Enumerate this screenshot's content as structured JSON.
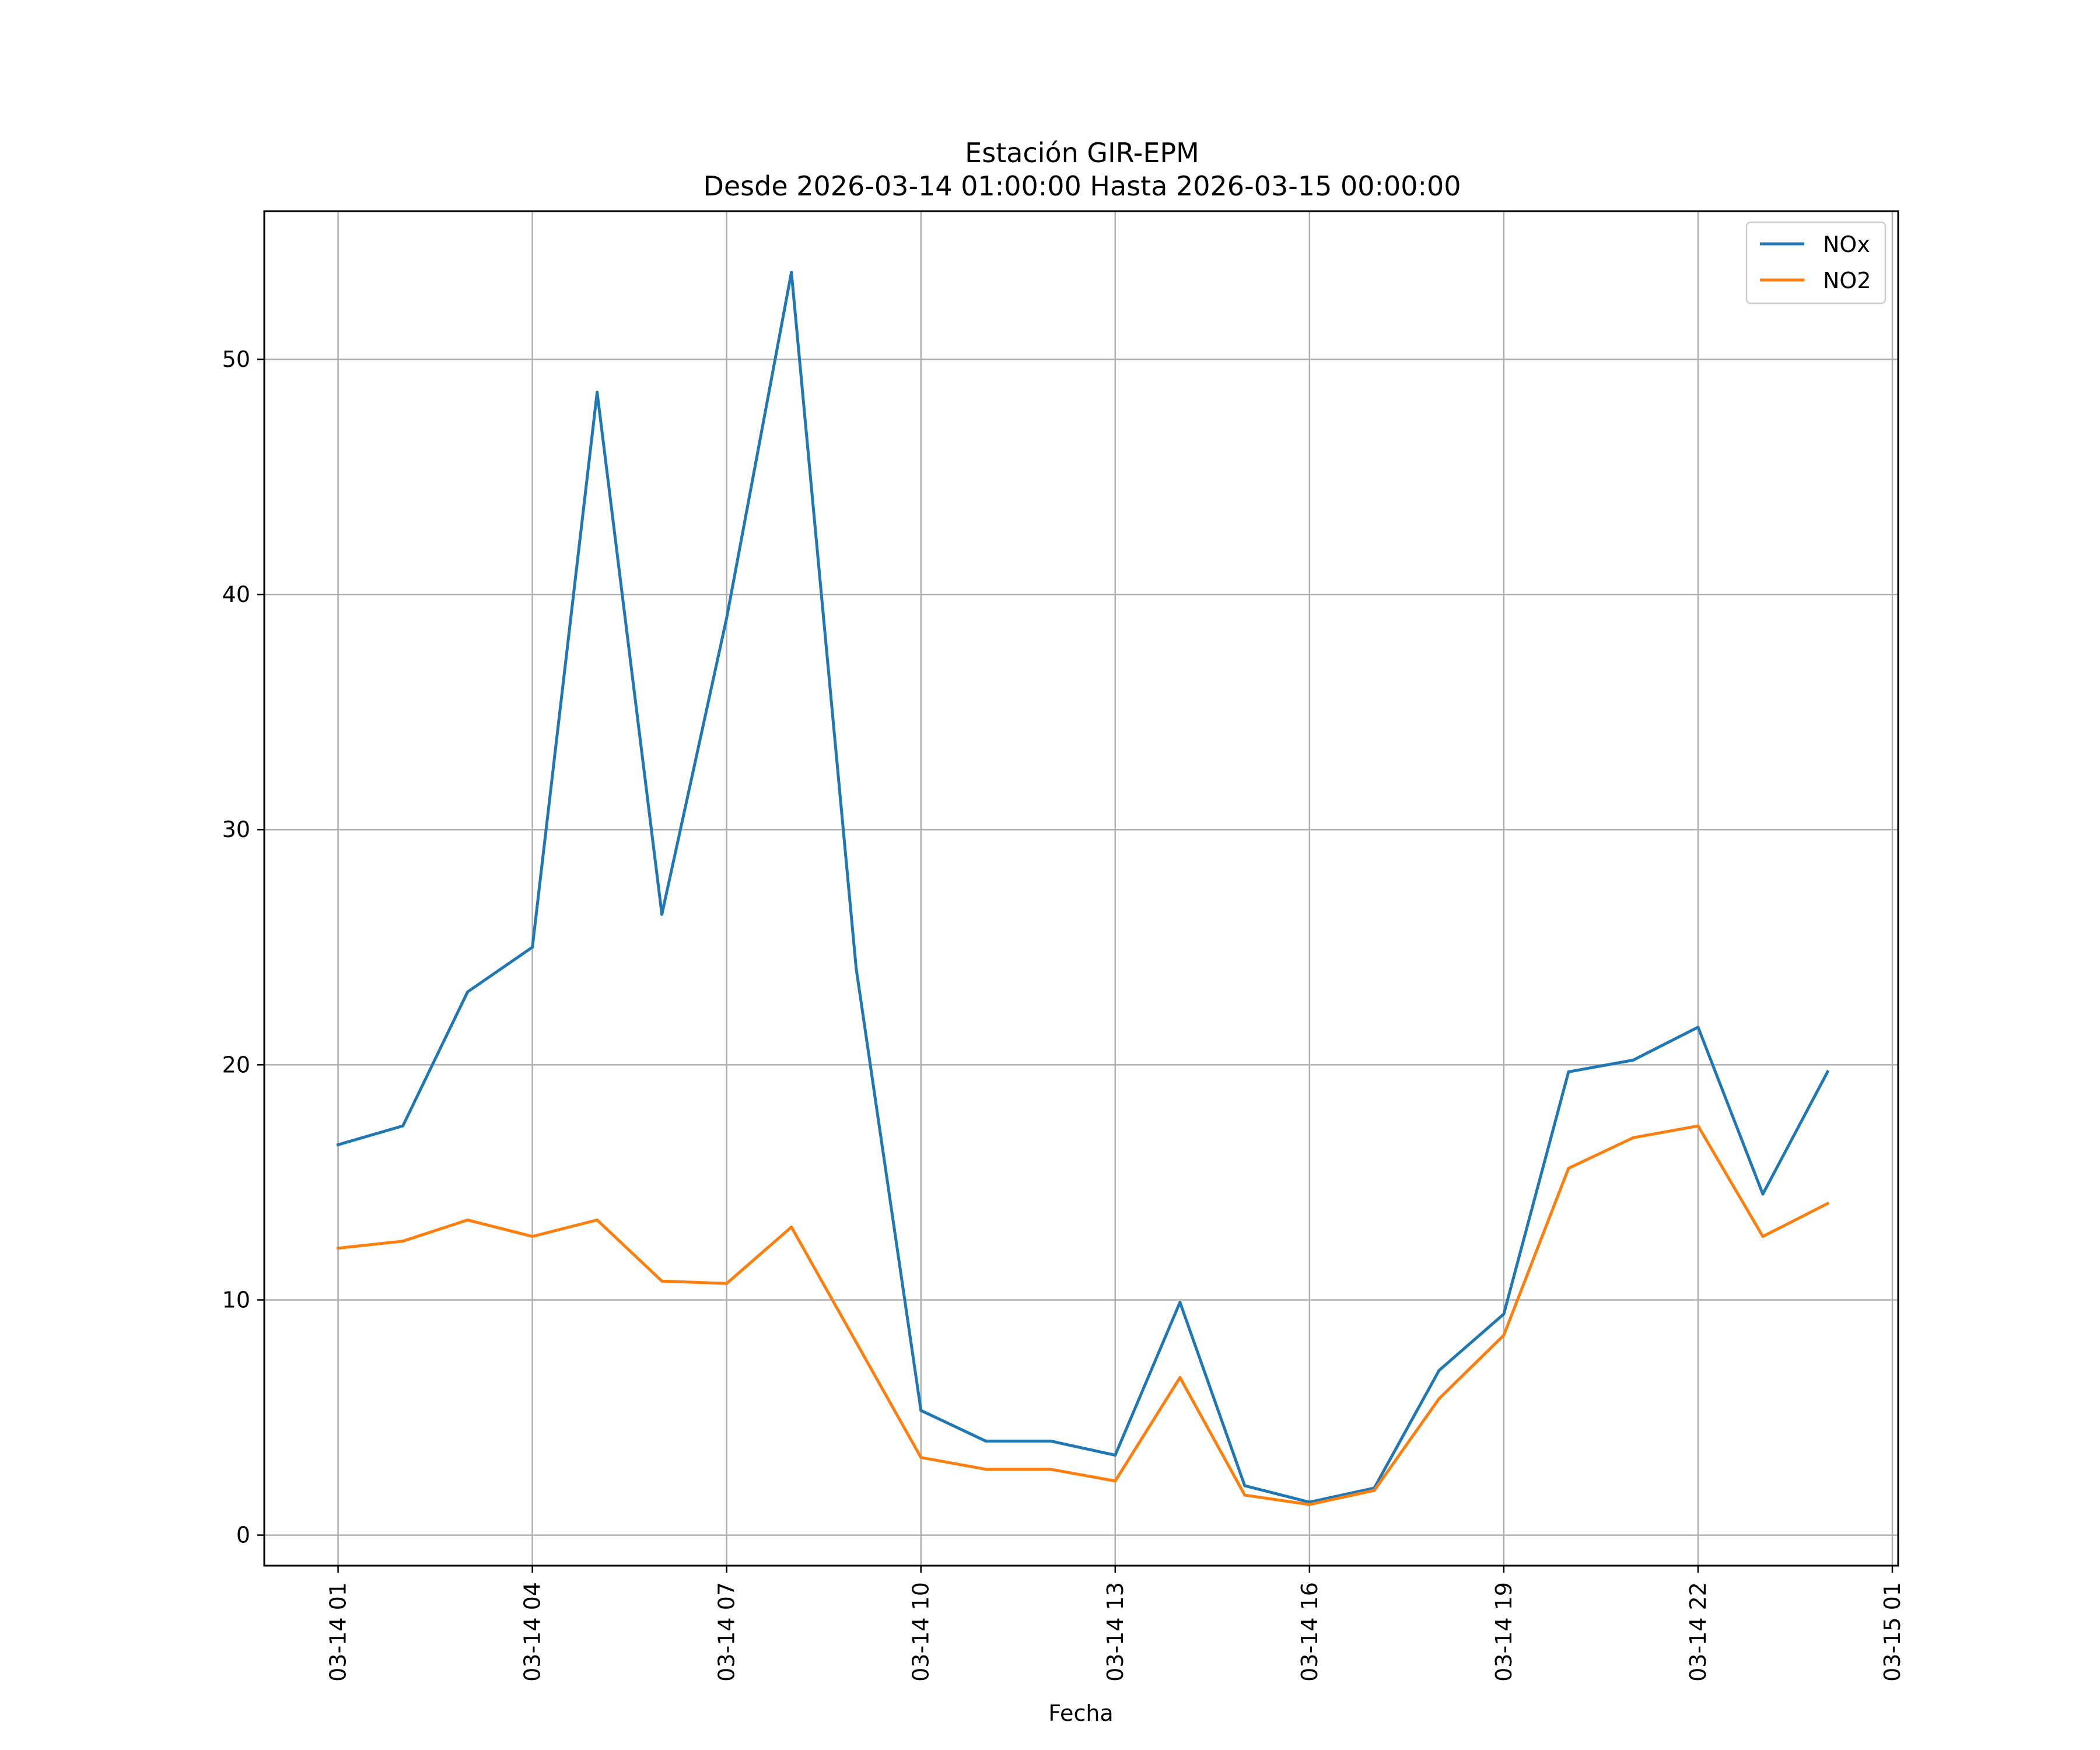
{
  "colors": {
    "nox": "#1f77b4",
    "no2": "#ff7f0e",
    "grid": "#b0b0b0",
    "axes": "#000000"
  },
  "chart_data": {
    "type": "line",
    "title": [
      "Estación GIR-EPM",
      "Desde 2026-03-14 01:00:00 Hasta 2026-03-15 00:00:00"
    ],
    "xlabel": "Fecha",
    "ylabel": "",
    "x": [
      "03-14 01",
      "03-14 02",
      "03-14 03",
      "03-14 04",
      "03-14 05",
      "03-14 06",
      "03-14 07",
      "03-14 08",
      "03-14 09",
      "03-14 10",
      "03-14 11",
      "03-14 12",
      "03-14 13",
      "03-14 14",
      "03-14 15",
      "03-14 16",
      "03-14 17",
      "03-14 18",
      "03-14 19",
      "03-14 20",
      "03-14 21",
      "03-14 22",
      "03-14 23",
      "03-15 00"
    ],
    "x_hours_from_start": [
      0,
      1,
      2,
      3,
      4,
      5,
      6,
      7,
      8,
      9,
      10,
      11,
      12,
      13,
      14,
      15,
      16,
      17,
      18,
      19,
      20,
      21,
      22,
      23
    ],
    "xlim_hours": [
      -1.14,
      24.09
    ],
    "xticks": [
      {
        "hour": 0,
        "label": "03-14 01"
      },
      {
        "hour": 3,
        "label": "03-14 04"
      },
      {
        "hour": 6,
        "label": "03-14 07"
      },
      {
        "hour": 9,
        "label": "03-14 10"
      },
      {
        "hour": 12,
        "label": "03-14 13"
      },
      {
        "hour": 15,
        "label": "03-14 16"
      },
      {
        "hour": 18,
        "label": "03-14 19"
      },
      {
        "hour": 21,
        "label": "03-14 22"
      },
      {
        "hour": 24,
        "label": "03-15 01"
      }
    ],
    "yticks": [
      0,
      10,
      20,
      30,
      40,
      50
    ],
    "ylim": [
      -1.3,
      56.3
    ],
    "grid": true,
    "legend_position": "top-right",
    "series": [
      {
        "name": "NOx",
        "color_key": "nox",
        "values": [
          16.6,
          17.4,
          23.1,
          25.0,
          48.6,
          26.4,
          39.0,
          53.7,
          24.1,
          5.3,
          4.0,
          4.0,
          3.4,
          9.9,
          2.1,
          1.4,
          2.0,
          7.0,
          9.4,
          19.7,
          20.2,
          21.6,
          14.5,
          19.7
        ]
      },
      {
        "name": "NO2",
        "color_key": "no2",
        "values": [
          12.2,
          12.5,
          13.4,
          12.7,
          13.4,
          10.8,
          10.7,
          13.1,
          8.2,
          3.3,
          2.8,
          2.8,
          2.3,
          6.7,
          1.7,
          1.3,
          1.9,
          5.8,
          8.5,
          15.6,
          16.9,
          17.4,
          12.7,
          14.1
        ]
      }
    ]
  }
}
